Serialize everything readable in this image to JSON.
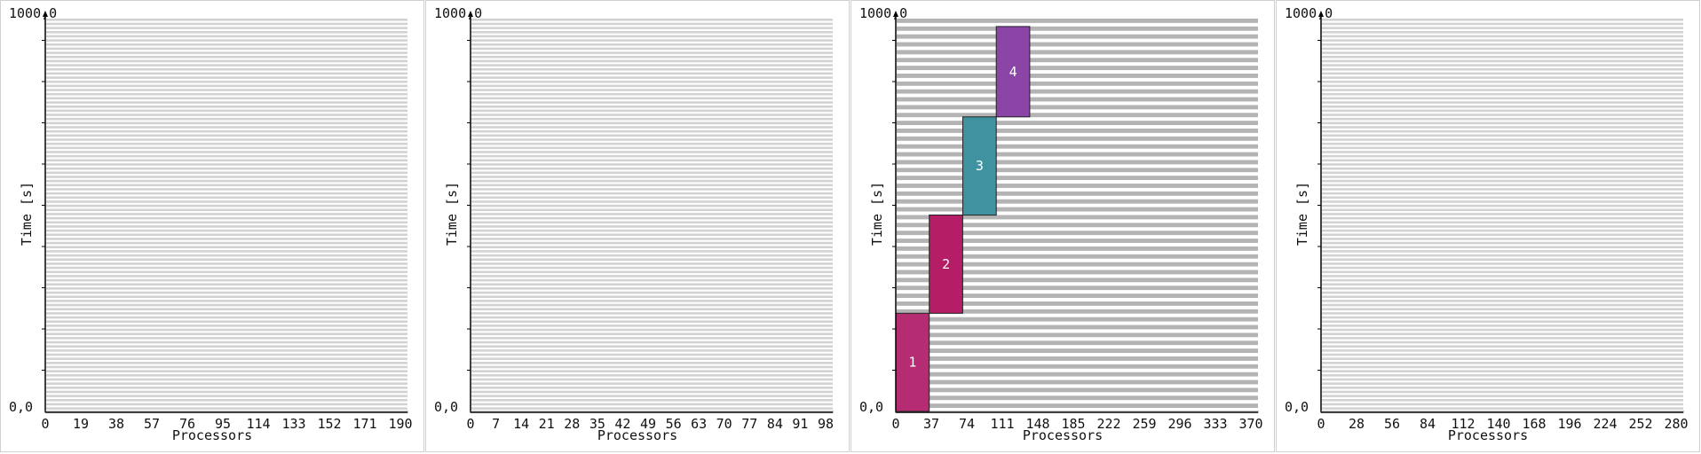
{
  "chart_data": [
    {
      "type": "gantt",
      "xlabel": "Processors",
      "ylabel": "Time [s]",
      "y_top_label": "1000,0",
      "y_bottom_label": "0,0",
      "ylim": [
        0,
        1000
      ],
      "x_ticks": [
        "0",
        "19",
        "38",
        "57",
        "76",
        "95",
        "114",
        "133",
        "152",
        "171",
        "190"
      ],
      "xlim": [
        0,
        200
      ],
      "rows": 95,
      "stripe_color": "#d2d2d2",
      "jobs": []
    },
    {
      "type": "gantt",
      "xlabel": "Processors",
      "ylabel": "Time [s]",
      "y_top_label": "1000,0",
      "y_bottom_label": "0,0",
      "ylim": [
        0,
        1000
      ],
      "x_ticks": [
        "0",
        "7",
        "14",
        "21",
        "28",
        "35",
        "42",
        "49",
        "56",
        "63",
        "70",
        "77",
        "84",
        "91",
        "98"
      ],
      "xlim": [
        0,
        100
      ],
      "rows": 95,
      "stripe_color": "#d2d2d2",
      "jobs": []
    },
    {
      "type": "gantt",
      "xlabel": "Processors",
      "ylabel": "Time [s]",
      "y_top_label": "1000,0",
      "y_bottom_label": "0,0",
      "ylim": [
        0,
        1000
      ],
      "x_ticks": [
        "0",
        "37",
        "74",
        "111",
        "148",
        "185",
        "222",
        "259",
        "296",
        "333",
        "370"
      ],
      "xlim": [
        0,
        400
      ],
      "rows": 50,
      "stripe_color": "#b4b4b4",
      "jobs": [
        {
          "label": "1",
          "p_start": 0,
          "p_end": 37,
          "t_start": 0,
          "t_end": 250,
          "color": "#b52c72"
        },
        {
          "label": "2",
          "p_start": 37,
          "p_end": 74,
          "t_start": 250,
          "t_end": 500,
          "color": "#b51e66"
        },
        {
          "label": "3",
          "p_start": 74,
          "p_end": 111,
          "t_start": 500,
          "t_end": 750,
          "color": "#3f93a0"
        },
        {
          "label": "4",
          "p_start": 111,
          "p_end": 148,
          "t_start": 750,
          "t_end": 980,
          "color": "#8a45a6"
        }
      ]
    },
    {
      "type": "gantt",
      "xlabel": "Processors",
      "ylabel": "Time [s]",
      "y_top_label": "1000,0",
      "y_bottom_label": "0,0",
      "ylim": [
        0,
        1000
      ],
      "x_ticks": [
        "0",
        "28",
        "56",
        "84",
        "112",
        "140",
        "168",
        "196",
        "224",
        "252",
        "280"
      ],
      "xlim": [
        0,
        300
      ],
      "rows": 95,
      "stripe_color": "#d2d2d2",
      "jobs": []
    }
  ]
}
